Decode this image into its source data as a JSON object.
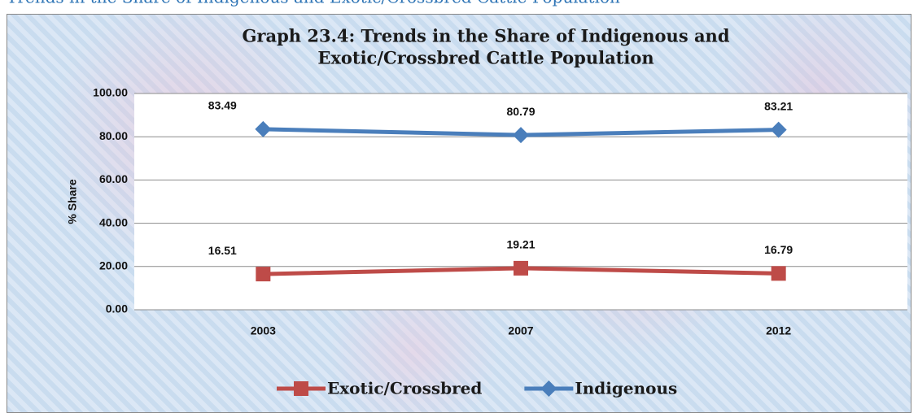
{
  "header": "Trends in the Share of Indigenous and Exotic/Crossbred Cattle Population",
  "chart_data": {
    "type": "line",
    "title": [
      "Graph  23.4: Trends in the Share of Indigenous and",
      "Exotic/Crossbred Cattle Population"
    ],
    "ylabel": "% Share",
    "categories": [
      "2003",
      "2007",
      "2012"
    ],
    "series": [
      {
        "name": "Exotic/Crossbred",
        "color": "#be4b48",
        "marker": "square",
        "values": [
          16.51,
          19.21,
          16.79
        ]
      },
      {
        "name": "Indigenous",
        "color": "#4a7ebb",
        "marker": "diamond",
        "values": [
          83.49,
          80.79,
          83.21
        ]
      }
    ],
    "ylim": [
      0,
      100
    ],
    "yticks": [
      {
        "value": 0,
        "label": "0.00"
      },
      {
        "value": 20,
        "label": "20.00"
      },
      {
        "value": 40,
        "label": "40.00"
      },
      {
        "value": 60,
        "label": "60.00"
      },
      {
        "value": 80,
        "label": "80.00"
      },
      {
        "value": 100,
        "label": "100.00"
      }
    ],
    "grid": true,
    "legend": "bottom"
  }
}
